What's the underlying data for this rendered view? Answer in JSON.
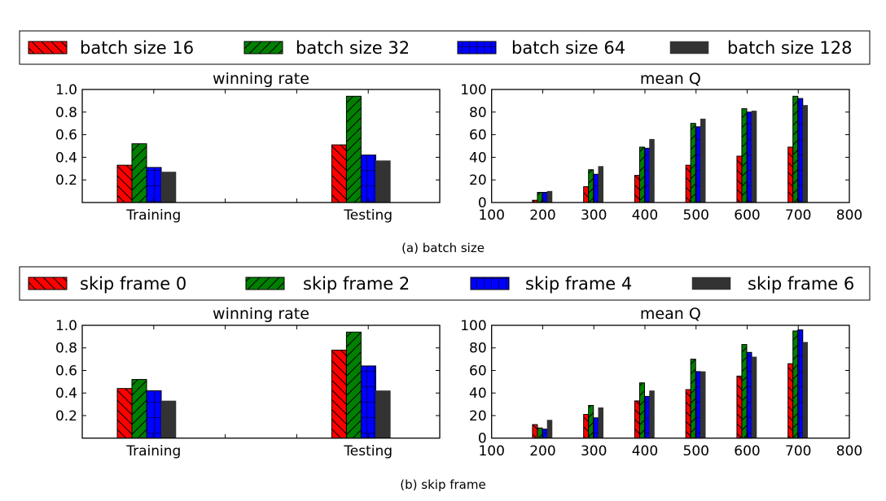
{
  "colors": {
    "series": [
      "#ff0000",
      "#008000",
      "#0000ff",
      "#333333"
    ],
    "hatch": [
      "\\\\",
      "/",
      "+",
      ""
    ]
  },
  "chart_data": [
    {
      "panel": "a",
      "caption": "(a) batch size",
      "legend": {
        "entries": [
          "batch size 16",
          "batch size 32",
          "batch size 64",
          "batch size 128"
        ],
        "placement": "top-full-width"
      },
      "subplots": [
        {
          "type": "bar",
          "title": "winning rate",
          "categories": [
            "Training",
            "Testing"
          ],
          "ylim": [
            0,
            1.0
          ],
          "yticks": [
            "0.2",
            "0.4",
            "0.6",
            "0.8",
            "1.0"
          ],
          "series": [
            {
              "name": "batch size 16",
              "values": [
                0.33,
                0.51
              ]
            },
            {
              "name": "batch size 32",
              "values": [
                0.52,
                0.94
              ]
            },
            {
              "name": "batch size 64",
              "values": [
                0.31,
                0.42
              ]
            },
            {
              "name": "batch size 128",
              "values": [
                0.27,
                0.37
              ]
            }
          ]
        },
        {
          "type": "bar",
          "title": "mean Q",
          "x": [
            200,
            300,
            400,
            500,
            600,
            700
          ],
          "xlim": [
            100,
            800
          ],
          "xticks": [
            "100",
            "200",
            "300",
            "400",
            "500",
            "600",
            "700",
            "800"
          ],
          "ylim": [
            0,
            100
          ],
          "yticks": [
            "0",
            "20",
            "40",
            "60",
            "80",
            "100"
          ],
          "series": [
            {
              "name": "batch size 16",
              "values": [
                2,
                14,
                24,
                33,
                41,
                49
              ]
            },
            {
              "name": "batch size 32",
              "values": [
                9,
                29,
                49,
                70,
                83,
                94
              ]
            },
            {
              "name": "batch size 64",
              "values": [
                9,
                25,
                48,
                67,
                80,
                92
              ]
            },
            {
              "name": "batch size 128",
              "values": [
                10,
                32,
                56,
                74,
                81,
                86
              ]
            }
          ]
        }
      ]
    },
    {
      "panel": "b",
      "caption": "(b) skip frame",
      "legend": {
        "entries": [
          "skip frame 0",
          "skip frame 2",
          "skip frame 4",
          "skip frame 6"
        ],
        "placement": "top-full-width"
      },
      "subplots": [
        {
          "type": "bar",
          "title": "winning rate",
          "categories": [
            "Training",
            "Testing"
          ],
          "ylim": [
            0,
            1.0
          ],
          "yticks": [
            "0.2",
            "0.4",
            "0.6",
            "0.8",
            "1.0"
          ],
          "series": [
            {
              "name": "skip frame 0",
              "values": [
                0.44,
                0.78
              ]
            },
            {
              "name": "skip frame 2",
              "values": [
                0.52,
                0.94
              ]
            },
            {
              "name": "skip frame 4",
              "values": [
                0.42,
                0.64
              ]
            },
            {
              "name": "skip frame 6",
              "values": [
                0.33,
                0.42
              ]
            }
          ]
        },
        {
          "type": "bar",
          "title": "mean Q",
          "x": [
            200,
            300,
            400,
            500,
            600,
            700
          ],
          "xlim": [
            100,
            800
          ],
          "xticks": [
            "100",
            "200",
            "300",
            "400",
            "500",
            "600",
            "700",
            "800"
          ],
          "ylim": [
            0,
            100
          ],
          "yticks": [
            "0",
            "20",
            "40",
            "60",
            "80",
            "100"
          ],
          "series": [
            {
              "name": "skip frame 0",
              "values": [
                12,
                21,
                33,
                43,
                55,
                66
              ]
            },
            {
              "name": "skip frame 2",
              "values": [
                9,
                29,
                49,
                70,
                83,
                95
              ]
            },
            {
              "name": "skip frame 4",
              "values": [
                8,
                18,
                37,
                59,
                76,
                96
              ]
            },
            {
              "name": "skip frame 6",
              "values": [
                16,
                27,
                42,
                59,
                72,
                85
              ]
            }
          ]
        }
      ]
    }
  ]
}
